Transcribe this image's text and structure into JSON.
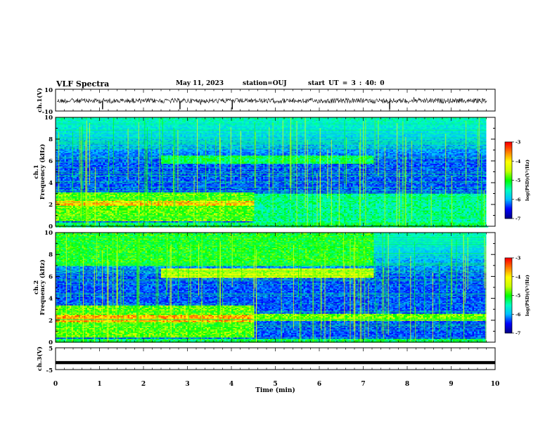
{
  "header": {
    "title": "VLF Spectra",
    "date": "May 11, 2023",
    "station": "station=OUJ",
    "start": "start UT = 3 : 40: 0"
  },
  "colors": {
    "colormap": [
      "#00008b",
      "#0000ff",
      "#00bfff",
      "#00ffbf",
      "#00ff00",
      "#c8ff00",
      "#ffff00",
      "#ff8000",
      "#ff0000",
      "#ffffff"
    ],
    "trace": "#000000"
  },
  "chart_data": [
    {
      "type": "line",
      "panel": "ch1-waveform",
      "ylabel": "ch.1(V)",
      "ylim": [
        -10,
        10
      ],
      "yticks": [
        "10",
        "-10"
      ],
      "baseline": 0,
      "impulses_at_min": [
        1.07,
        2.83,
        4.02,
        7.6
      ],
      "xlim": [
        0,
        10
      ]
    },
    {
      "type": "heatmap",
      "panel": "ch1-spectrogram",
      "ylabel": "ch.1\nFrequency (kHz)",
      "ylim": [
        0,
        10
      ],
      "yticks": [
        "0",
        "2",
        "4",
        "6",
        "8",
        "10"
      ],
      "xlim": [
        0,
        10
      ],
      "data_end_min": 9.8,
      "bands": [
        {
          "f_lo": 1.9,
          "f_hi": 2.4,
          "t_start": 0,
          "t_end": 4.5,
          "level": 0.85
        },
        {
          "f_lo": 0.5,
          "f_hi": 3.2,
          "t_start": 0,
          "t_end": 4.5,
          "level": 0.6
        },
        {
          "f_lo": 0.3,
          "f_hi": 3.0,
          "t_start": 4.5,
          "t_end": 9.8,
          "level": 0.45
        },
        {
          "f_lo": 5.8,
          "f_hi": 6.6,
          "t_start": 2.4,
          "t_end": 7.2,
          "level": 0.5
        }
      ],
      "colorbar": {
        "label": "log(PSD)(V²/Hz)",
        "range": [
          -7,
          -3
        ],
        "ticks": [
          "-3",
          "-4",
          "-5",
          "-6",
          "-7"
        ]
      }
    },
    {
      "type": "heatmap",
      "panel": "ch2-spectrogram",
      "ylabel": "ch.2\nFrequency (kHz)",
      "ylim": [
        0,
        10
      ],
      "yticks": [
        "0",
        "2",
        "4",
        "6",
        "8",
        "10"
      ],
      "xlim": [
        0,
        10
      ],
      "data_end_min": 9.8,
      "bands": [
        {
          "f_lo": 1.9,
          "f_hi": 2.5,
          "t_start": 0,
          "t_end": 4.5,
          "level": 0.88
        },
        {
          "f_lo": 0.5,
          "f_hi": 3.4,
          "t_start": 0,
          "t_end": 4.5,
          "level": 0.6
        },
        {
          "f_lo": 2.0,
          "f_hi": 2.6,
          "t_start": 4.5,
          "t_end": 9.8,
          "level": 0.62
        },
        {
          "f_lo": 5.9,
          "f_hi": 6.8,
          "t_start": 2.4,
          "t_end": 7.2,
          "level": 0.7
        },
        {
          "f_lo": 7.0,
          "f_hi": 10.0,
          "t_start": 0,
          "t_end": 7.2,
          "level": 0.55
        }
      ],
      "colorbar": {
        "label": "log(PSD)(V²/Hz)",
        "range": [
          -7,
          -3
        ],
        "ticks": [
          "-3",
          "-4",
          "-5",
          "-6",
          "-7"
        ]
      }
    },
    {
      "type": "line",
      "panel": "ch3-waveform",
      "ylabel": "ch.3(V)",
      "ylim": [
        -5,
        5
      ],
      "yticks": [
        "5",
        "-5"
      ],
      "baseline": -1.8,
      "xlim": [
        0,
        10
      ]
    }
  ],
  "xaxis": {
    "label": "Time (min)",
    "ticks": [
      "0",
      "1",
      "2",
      "3",
      "4",
      "5",
      "6",
      "7",
      "8",
      "9",
      "10"
    ]
  }
}
